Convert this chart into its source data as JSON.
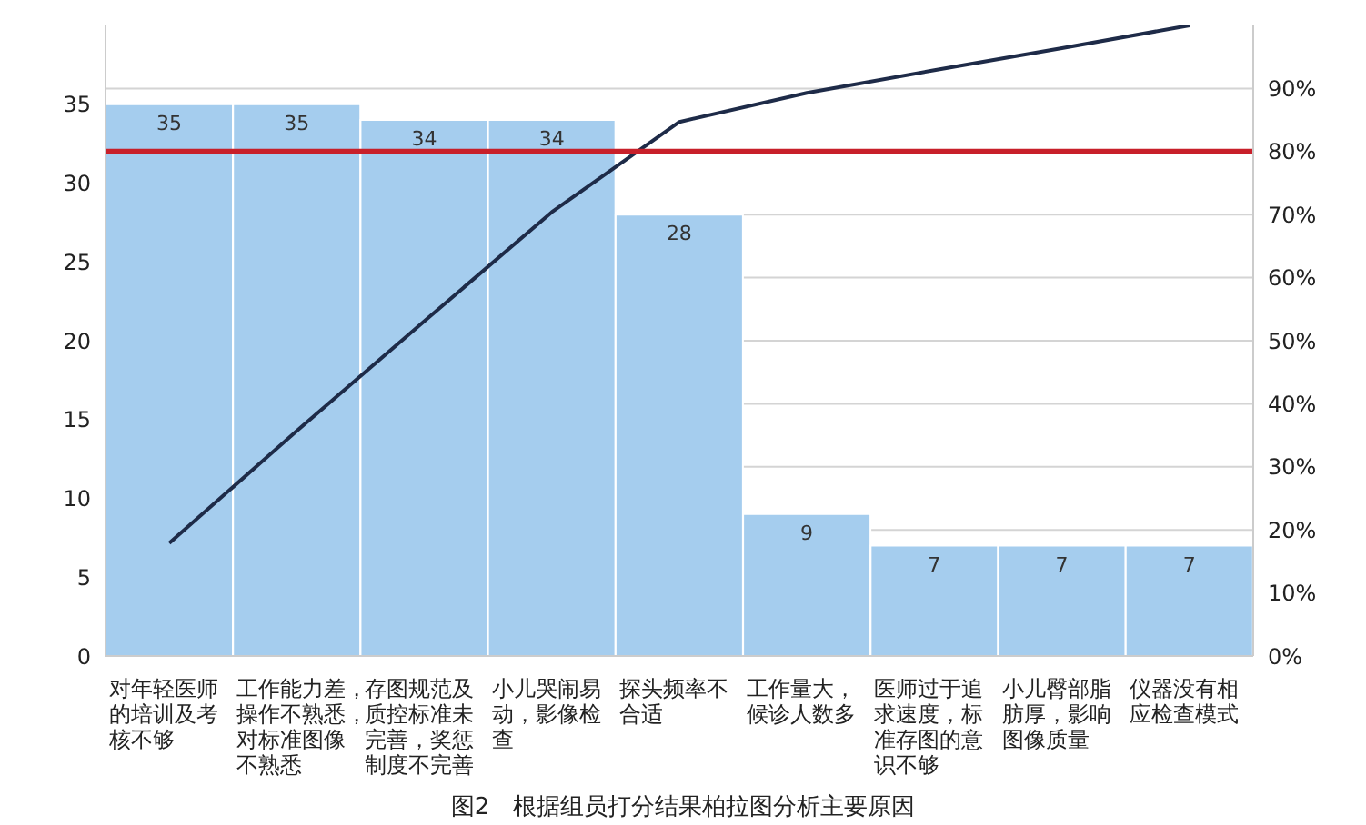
{
  "chart_data": {
    "type": "bar",
    "title": "图2　根据组员打分结果柏拉图分析主要原因",
    "categories": [
      "对年轻医师的培训及考核不够",
      "工作能力差，操作不熟悉，对标准图像不熟悉",
      "存图规范及质控标准未完善，奖惩制度不完善",
      "小儿哭闹易动，影像检查",
      "探头频率不合适",
      "工作量大，候诊人数多",
      "医师过于追求速度，标准存图的意识不够",
      "小儿臀部脂肪厚，影响图像质量",
      "仪器没有相应检查模式"
    ],
    "series": [
      {
        "color": "#a5cdee",
        "values": [
          35,
          35,
          34,
          34,
          28,
          9,
          7,
          7,
          7
        ],
        "value_labels": [
          "35",
          "35",
          "34",
          "34",
          "28",
          "9",
          "7",
          "7",
          "7"
        ]
      },
      {
        "type": "line",
        "axis": "y2",
        "color": "#1e2b48",
        "values": [
          17.9,
          35.7,
          53.1,
          70.4,
          84.7,
          89.3,
          92.9,
          96.4,
          100
        ]
      }
    ],
    "ylim": [
      0,
      40
    ],
    "yticks": [
      0,
      5,
      10,
      15,
      20,
      25,
      30,
      35
    ],
    "y2lim": [
      0,
      100
    ],
    "y2ticks": [
      {
        "value": 0,
        "label": "0%"
      },
      {
        "value": 10,
        "label": "10%"
      },
      {
        "value": 20,
        "label": "20%"
      },
      {
        "value": 30,
        "label": "30%"
      },
      {
        "value": 40,
        "label": "40%"
      },
      {
        "value": 50,
        "label": "50%"
      },
      {
        "value": 60,
        "label": "60%"
      },
      {
        "value": 70,
        "label": "70%"
      },
      {
        "value": 80,
        "label": "80%"
      },
      {
        "value": 90,
        "label": "90%"
      }
    ],
    "ref_lines": [
      {
        "axis": "y2",
        "value": 80,
        "color": "#c8202a"
      }
    ],
    "grid": "y2",
    "marker": "none",
    "line_style": "solid"
  }
}
